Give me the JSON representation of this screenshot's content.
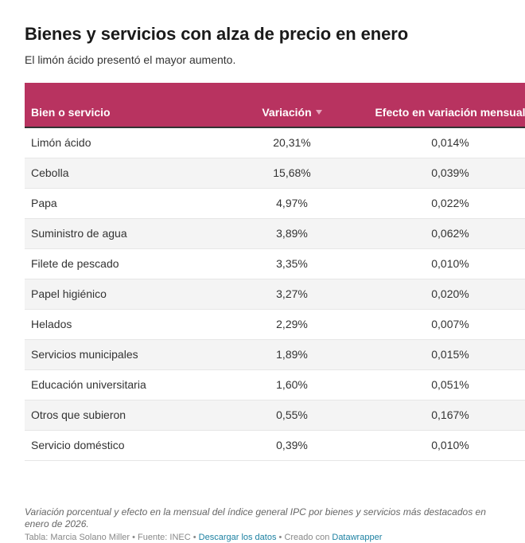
{
  "header": {
    "title": "Bienes y servicios con alza de precio en enero",
    "subtitle": "El limón ácido presentó el mayor aumento."
  },
  "table": {
    "columns": {
      "item": "Bien o servicio",
      "variation": "Variación",
      "effect": "Efecto en variación mensual"
    },
    "sort_icon": "sort-down-icon",
    "header_color": "#b83360",
    "rows": [
      {
        "item": "Limón ácido",
        "variation": "20,31%",
        "effect": "0,014%"
      },
      {
        "item": "Cebolla",
        "variation": "15,68%",
        "effect": "0,039%"
      },
      {
        "item": "Papa",
        "variation": "4,97%",
        "effect": "0,022%"
      },
      {
        "item": "Suministro de agua",
        "variation": "3,89%",
        "effect": "0,062%"
      },
      {
        "item": "Filete de pescado",
        "variation": "3,35%",
        "effect": "0,010%"
      },
      {
        "item": "Papel higiénico",
        "variation": "3,27%",
        "effect": "0,020%"
      },
      {
        "item": "Helados",
        "variation": "2,29%",
        "effect": "0,007%"
      },
      {
        "item": "Servicios municipales",
        "variation": "1,89%",
        "effect": "0,015%"
      },
      {
        "item": "Educación universitaria",
        "variation": "1,60%",
        "effect": "0,051%"
      },
      {
        "item": "Otros que subieron",
        "variation": "0,55%",
        "effect": "0,167%"
      },
      {
        "item": "Servicio doméstico",
        "variation": "0,39%",
        "effect": "0,010%"
      }
    ]
  },
  "notes": "Variación porcentual y efecto en la mensual del índice general IPC por bienes y servicios más destacados en enero de 2026.",
  "footer": {
    "credit": "Tabla: Marcia Solano Miller",
    "source": "Fuente: INEC",
    "separator": " • ",
    "download_label": "Descargar los datos",
    "created_with": "Creado con",
    "tool_label": "Datawrapper",
    "link_color": "#1d81a2"
  }
}
